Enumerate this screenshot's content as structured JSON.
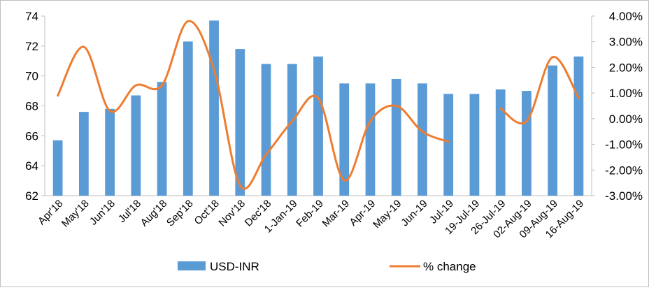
{
  "chart_data": {
    "type": "bar",
    "title": "",
    "xlabel": "",
    "ylabel": "",
    "categories": [
      "Apr'18",
      "May'18",
      "Jun'18",
      "Jul'18",
      "Aug'18",
      "Sep'18",
      "Oct'18",
      "Nov'18",
      "Dec'18",
      "1-Jan-19",
      "Feb-19",
      "Mar-19",
      "Apr-19",
      "May-19",
      "Jun-19",
      "Jul-19",
      "19-Jul-19",
      "26-Jul-19",
      "02-Aug-19",
      "09-Aug-19",
      "16-Aug-19"
    ],
    "series": [
      {
        "name": "USD-INR",
        "type": "bar",
        "axis": "left",
        "color": "#5b9bd5",
        "values": [
          65.7,
          67.6,
          67.8,
          68.7,
          69.6,
          72.3,
          73.7,
          71.8,
          70.8,
          70.8,
          71.3,
          69.5,
          69.5,
          69.8,
          69.5,
          68.8,
          68.8,
          69.1,
          69.0,
          70.7,
          71.3
        ]
      },
      {
        "name": "% change",
        "type": "line",
        "axis": "right",
        "color": "#ed7d31",
        "values": [
          0.009,
          0.028,
          0.003,
          0.013,
          0.013,
          0.038,
          0.019,
          -0.026,
          -0.014,
          -0.001,
          0.008,
          -0.024,
          -0.001,
          0.005,
          -0.005,
          -0.009,
          null,
          0.004,
          -0.001,
          0.024,
          0.008
        ]
      }
    ],
    "y_left": {
      "ylim": [
        62,
        74
      ],
      "ticks": [
        62,
        64,
        66,
        68,
        70,
        72,
        74
      ],
      "tick_labels": [
        "62",
        "64",
        "66",
        "68",
        "70",
        "72",
        "74"
      ]
    },
    "y_right": {
      "ylim": [
        -0.03,
        0.04
      ],
      "ticks": [
        -0.03,
        -0.02,
        -0.01,
        0,
        0.01,
        0.02,
        0.03,
        0.04
      ],
      "tick_labels": [
        "-3.00%",
        "-2.00%",
        "-1.00%",
        "0.00%",
        "1.00%",
        "2.00%",
        "3.00%",
        "4.00%"
      ]
    },
    "grid": false,
    "legend": "bottom",
    "legend_entries": [
      "USD-INR",
      "% change"
    ]
  }
}
